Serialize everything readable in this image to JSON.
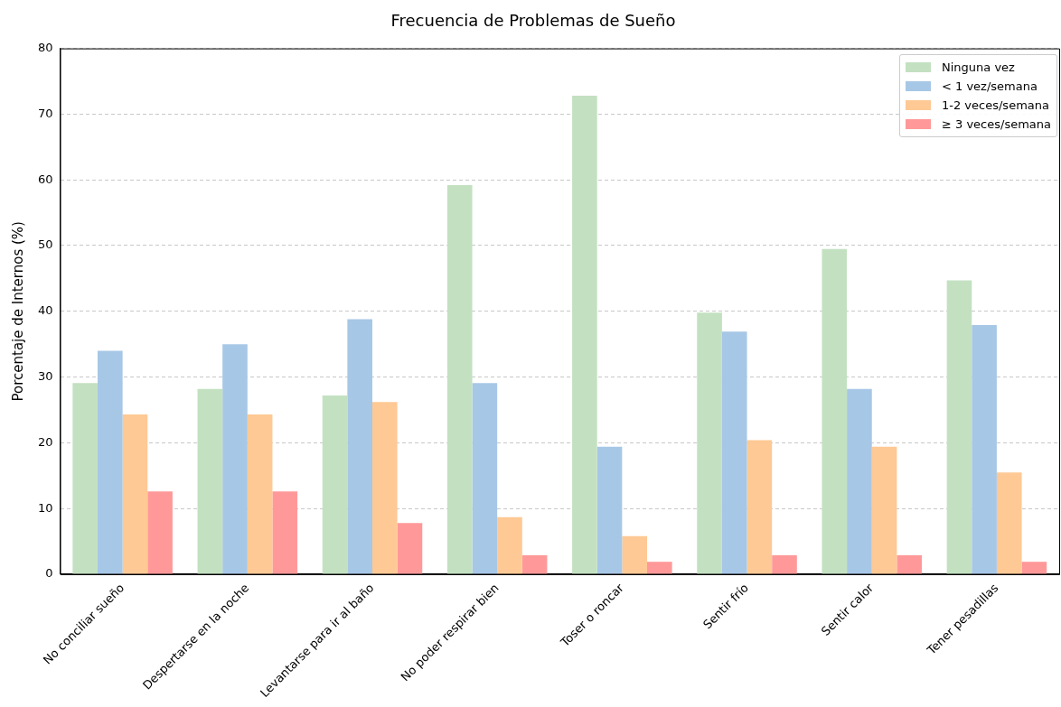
{
  "chart_data": {
    "type": "bar",
    "title": "Frecuencia de Problemas de Sueño",
    "ylabel": "Porcentaje de Internos (%)",
    "categories": [
      "No conciliar sueño",
      "Despertarse en la noche",
      "Levantarse para ir al baño",
      "No poder respirar bien",
      "Toser o roncar",
      "Sentir frío",
      "Sentir calor",
      "Tener pesadillas"
    ],
    "series": [
      {
        "name": "Ninguna vez",
        "color": "#c3e1c1",
        "values": [
          29.1,
          28.2,
          27.2,
          59.2,
          72.8,
          39.8,
          49.5,
          44.7
        ]
      },
      {
        "name": "< 1 vez/semana",
        "color": "#a7c7e6",
        "values": [
          34.0,
          35.0,
          38.8,
          29.1,
          19.4,
          36.9,
          28.2,
          37.9
        ]
      },
      {
        "name": "1-2 veces/semana",
        "color": "#fec994",
        "values": [
          24.3,
          24.3,
          26.2,
          8.7,
          5.8,
          20.4,
          19.4,
          15.5
        ]
      },
      {
        "name": "≥ 3 veces/semana",
        "color": "#ff9999",
        "values": [
          12.6,
          12.6,
          7.8,
          2.9,
          1.9,
          2.9,
          2.9,
          1.9
        ]
      }
    ],
    "ylim": [
      0,
      80
    ],
    "yticks": [
      0,
      10,
      20,
      30,
      40,
      50,
      60,
      70,
      80
    ],
    "grid": "y",
    "legend": "top right"
  }
}
